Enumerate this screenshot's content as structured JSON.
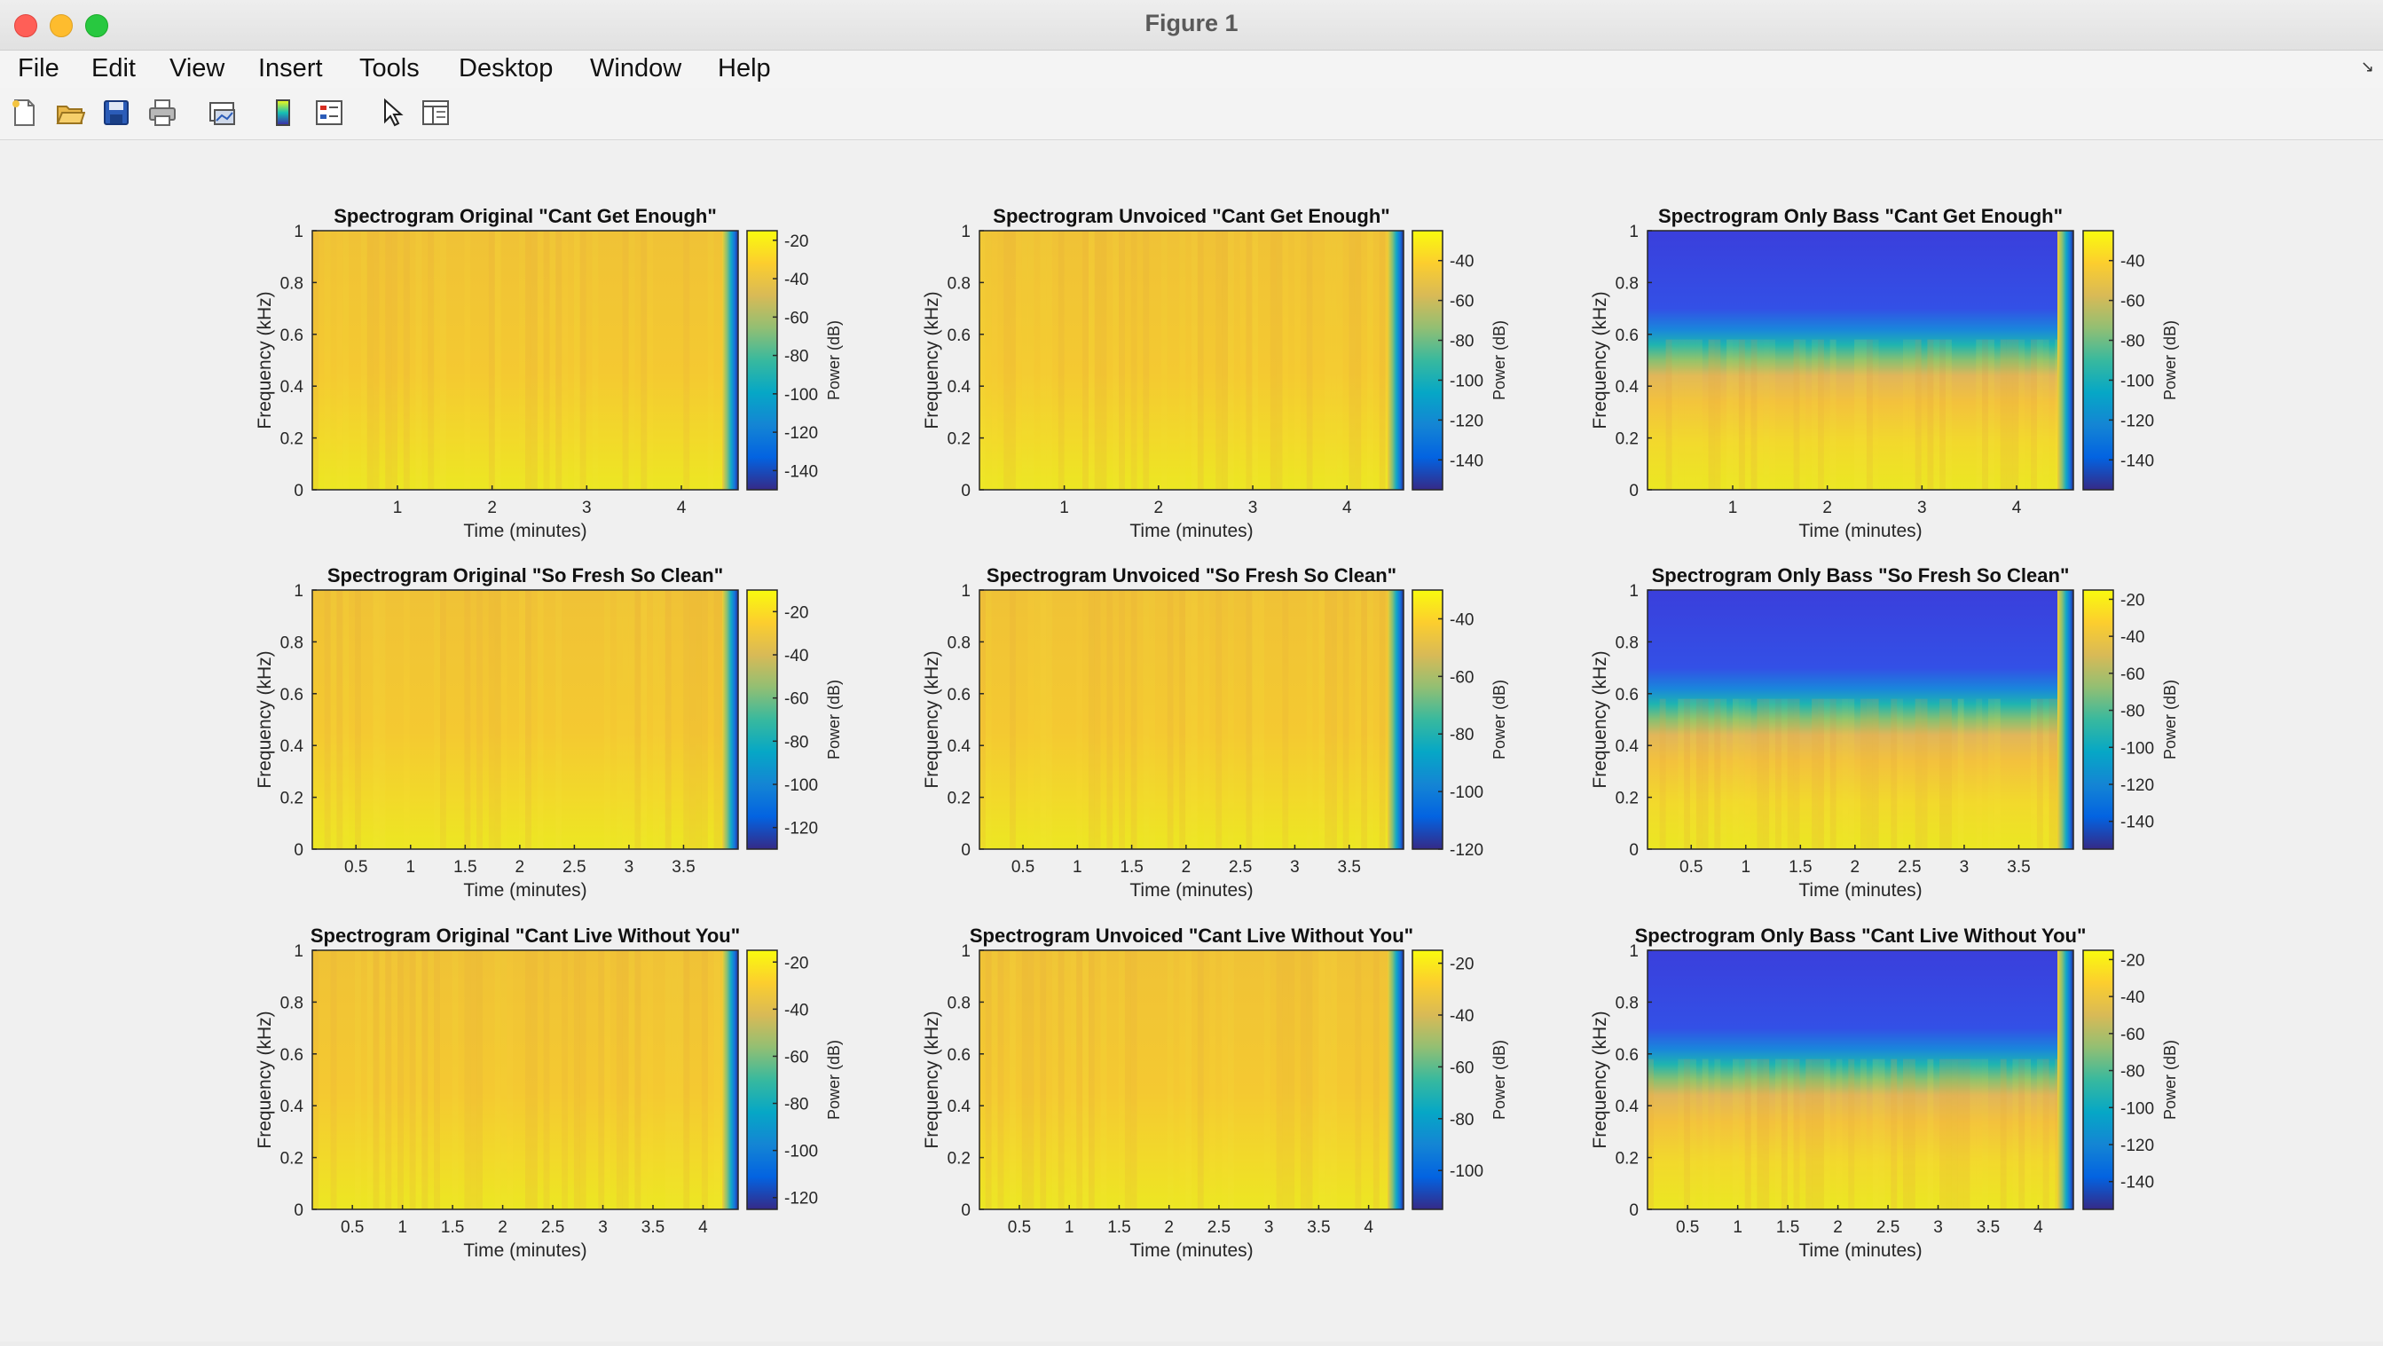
{
  "window": {
    "title": "Figure 1",
    "traffic_colors": [
      "#ff5f57",
      "#febc2e",
      "#28c840"
    ]
  },
  "menu": {
    "items": [
      "File",
      "Edit",
      "View",
      "Insert",
      "Tools",
      "Desktop",
      "Window",
      "Help"
    ]
  },
  "toolbar": {
    "icons": [
      "new-figure-icon",
      "open-file-icon",
      "save-icon",
      "print-icon",
      "link-plot-icon",
      "colorbar-icon",
      "legend-icon",
      "pointer-icon",
      "property-inspector-icon"
    ]
  },
  "chart_data": [
    {
      "type": "heatmap",
      "style": "full",
      "title": "Spectrogram Original \"Cant Get Enough\"",
      "xlabel": "Time (minutes)",
      "ylabel": "Frequency (kHz)",
      "clabel": "Power (dB)",
      "xlim": [
        0.1,
        4.6
      ],
      "ylim": [
        0,
        1
      ],
      "xticks": [
        1,
        2,
        3,
        4
      ],
      "xticklabels": [
        "1",
        "2",
        "3",
        "4"
      ],
      "yticks": [
        0,
        0.2,
        0.4,
        0.6,
        0.8,
        1
      ],
      "yticklabels": [
        "0",
        "0.2",
        "0.4",
        "0.6",
        "0.8",
        "1"
      ],
      "clim": [
        -150,
        -15
      ],
      "cticks": [
        -20,
        -40,
        -60,
        -80,
        -100,
        -120,
        -140
      ]
    },
    {
      "type": "heatmap",
      "style": "full",
      "title": "Spectrogram Unvoiced \"Cant Get Enough\"",
      "xlabel": "Time (minutes)",
      "ylabel": "Frequency (kHz)",
      "clabel": "Power (dB)",
      "xlim": [
        0.1,
        4.6
      ],
      "ylim": [
        0,
        1
      ],
      "xticks": [
        1,
        2,
        3,
        4
      ],
      "xticklabels": [
        "1",
        "2",
        "3",
        "4"
      ],
      "yticks": [
        0,
        0.2,
        0.4,
        0.6,
        0.8,
        1
      ],
      "yticklabels": [
        "0",
        "0.2",
        "0.4",
        "0.6",
        "0.8",
        "1"
      ],
      "clim": [
        -155,
        -25
      ],
      "cticks": [
        -40,
        -60,
        -80,
        -100,
        -120,
        -140
      ]
    },
    {
      "type": "heatmap",
      "style": "bass",
      "title": "Spectrogram Only Bass \"Cant Get Enough\"",
      "xlabel": "Time (minutes)",
      "ylabel": "Frequency (kHz)",
      "clabel": "Power (dB)",
      "xlim": [
        0.1,
        4.6
      ],
      "ylim": [
        0,
        1
      ],
      "xticks": [
        1,
        2,
        3,
        4
      ],
      "xticklabels": [
        "1",
        "2",
        "3",
        "4"
      ],
      "yticks": [
        0,
        0.2,
        0.4,
        0.6,
        0.8,
        1
      ],
      "yticklabels": [
        "0",
        "0.2",
        "0.4",
        "0.6",
        "0.8",
        "1"
      ],
      "clim": [
        -155,
        -25
      ],
      "cticks": [
        -40,
        -60,
        -80,
        -100,
        -120,
        -140
      ]
    },
    {
      "type": "heatmap",
      "style": "full",
      "title": "Spectrogram Original \"So Fresh So Clean\"",
      "xlabel": "Time (minutes)",
      "ylabel": "Frequency (kHz)",
      "clabel": "Power (dB)",
      "xlim": [
        0.1,
        4.0
      ],
      "ylim": [
        0,
        1
      ],
      "xticks": [
        0.5,
        1,
        1.5,
        2,
        2.5,
        3,
        3.5
      ],
      "xticklabels": [
        "0.5",
        "1",
        "1.5",
        "2",
        "2.5",
        "3",
        "3.5"
      ],
      "yticks": [
        0,
        0.2,
        0.4,
        0.6,
        0.8,
        1
      ],
      "yticklabels": [
        "0",
        "0.2",
        "0.4",
        "0.6",
        "0.8",
        "1"
      ],
      "clim": [
        -130,
        -10
      ],
      "cticks": [
        -20,
        -40,
        -60,
        -80,
        -100,
        -120
      ]
    },
    {
      "type": "heatmap",
      "style": "full",
      "title": "Spectrogram Unvoiced \"So Fresh So Clean\"",
      "xlabel": "Time (minutes)",
      "ylabel": "Frequency (kHz)",
      "clabel": "Power (dB)",
      "xlim": [
        0.1,
        4.0
      ],
      "ylim": [
        0,
        1
      ],
      "xticks": [
        0.5,
        1,
        1.5,
        2,
        2.5,
        3,
        3.5
      ],
      "xticklabels": [
        "0.5",
        "1",
        "1.5",
        "2",
        "2.5",
        "3",
        "3.5"
      ],
      "yticks": [
        0,
        0.2,
        0.4,
        0.6,
        0.8,
        1
      ],
      "yticklabels": [
        "0",
        "0.2",
        "0.4",
        "0.6",
        "0.8",
        "1"
      ],
      "clim": [
        -120,
        -30
      ],
      "cticks": [
        -40,
        -60,
        -80,
        -100,
        -120
      ]
    },
    {
      "type": "heatmap",
      "style": "bass",
      "title": "Spectrogram Only Bass \"So Fresh So Clean\"",
      "xlabel": "Time (minutes)",
      "ylabel": "Frequency (kHz)",
      "clabel": "Power (dB)",
      "xlim": [
        0.1,
        4.0
      ],
      "ylim": [
        0,
        1
      ],
      "xticks": [
        0.5,
        1,
        1.5,
        2,
        2.5,
        3,
        3.5
      ],
      "xticklabels": [
        "0.5",
        "1",
        "1.5",
        "2",
        "2.5",
        "3",
        "3.5"
      ],
      "yticks": [
        0,
        0.2,
        0.4,
        0.6,
        0.8,
        1
      ],
      "yticklabels": [
        "0",
        "0.2",
        "0.4",
        "0.6",
        "0.8",
        "1"
      ],
      "clim": [
        -155,
        -15
      ],
      "cticks": [
        -20,
        -40,
        -60,
        -80,
        -100,
        -120,
        -140
      ]
    },
    {
      "type": "heatmap",
      "style": "full",
      "title": "Spectrogram Original \"Cant Live Without You\"",
      "xlabel": "Time (minutes)",
      "ylabel": "Frequency (kHz)",
      "clabel": "Power (dB)",
      "xlim": [
        0.1,
        4.35
      ],
      "ylim": [
        0,
        1
      ],
      "xticks": [
        0.5,
        1,
        1.5,
        2,
        2.5,
        3,
        3.5,
        4
      ],
      "xticklabels": [
        "0.5",
        "1",
        "1.5",
        "2",
        "2.5",
        "3",
        "3.5",
        "4"
      ],
      "yticks": [
        0,
        0.2,
        0.4,
        0.6,
        0.8,
        1
      ],
      "yticklabels": [
        "0",
        "0.2",
        "0.4",
        "0.6",
        "0.8",
        "1"
      ],
      "clim": [
        -125,
        -15
      ],
      "cticks": [
        -20,
        -40,
        -60,
        -80,
        -100,
        -120
      ]
    },
    {
      "type": "heatmap",
      "style": "full",
      "title": "Spectrogram Unvoiced \"Cant Live Without You\"",
      "xlabel": "Time (minutes)",
      "ylabel": "Frequency (kHz)",
      "clabel": "Power (dB)",
      "xlim": [
        0.1,
        4.35
      ],
      "ylim": [
        0,
        1
      ],
      "xticks": [
        0.5,
        1,
        1.5,
        2,
        2.5,
        3,
        3.5,
        4
      ],
      "xticklabels": [
        "0.5",
        "1",
        "1.5",
        "2",
        "2.5",
        "3",
        "3.5",
        "4"
      ],
      "yticks": [
        0,
        0.2,
        0.4,
        0.6,
        0.8,
        1
      ],
      "yticklabels": [
        "0",
        "0.2",
        "0.4",
        "0.6",
        "0.8",
        "1"
      ],
      "clim": [
        -115,
        -15
      ],
      "cticks": [
        -20,
        -40,
        -60,
        -80,
        -100
      ]
    },
    {
      "type": "heatmap",
      "style": "bass",
      "title": "Spectrogram Only Bass \"Cant Live Without You\"",
      "xlabel": "Time (minutes)",
      "ylabel": "Frequency (kHz)",
      "clabel": "Power (dB)",
      "xlim": [
        0.1,
        4.35
      ],
      "ylim": [
        0,
        1
      ],
      "xticks": [
        0.5,
        1,
        1.5,
        2,
        2.5,
        3,
        3.5,
        4
      ],
      "xticklabels": [
        "0.5",
        "1",
        "1.5",
        "2",
        "2.5",
        "3",
        "3.5",
        "4"
      ],
      "yticks": [
        0,
        0.2,
        0.4,
        0.6,
        0.8,
        1
      ],
      "yticklabels": [
        "0",
        "0.2",
        "0.4",
        "0.6",
        "0.8",
        "1"
      ],
      "clim": [
        -155,
        -15
      ],
      "cticks": [
        -20,
        -40,
        -60,
        -80,
        -100,
        -120,
        -140
      ]
    }
  ]
}
